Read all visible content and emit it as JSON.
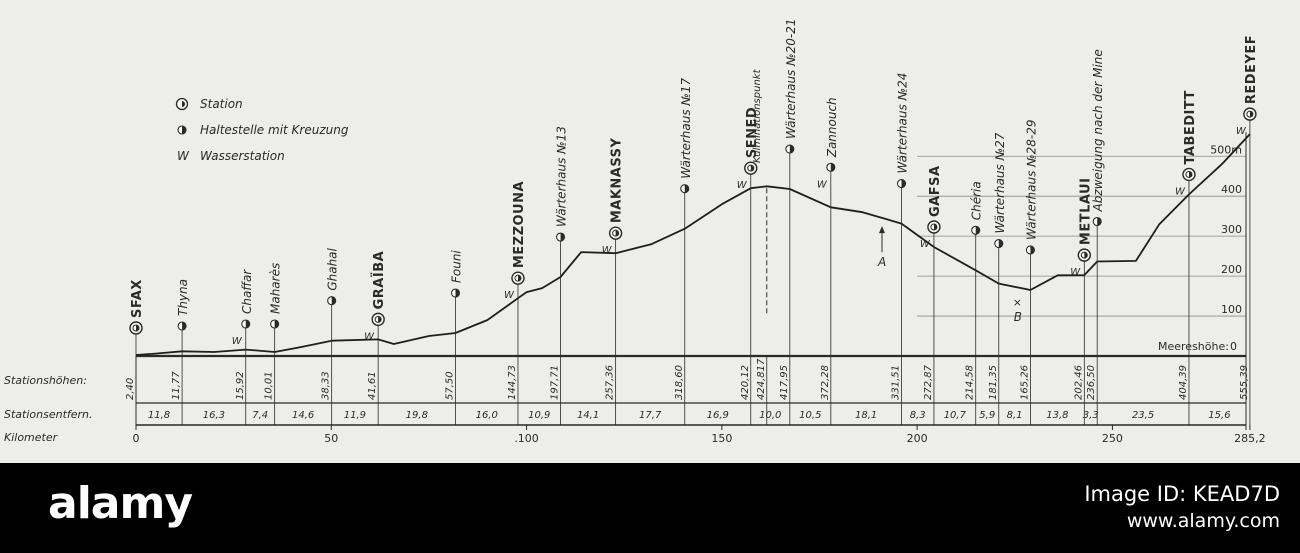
{
  "legend": {
    "station": "Station",
    "halt": "Haltestelle mit Kreuzung",
    "water_symbol": "W",
    "water": "Wasserstation"
  },
  "rows": {
    "heights_label": "Stationshöhen:",
    "distances_label": "Stationsentfern.",
    "km_label": "Kilometer",
    "sea_level_label": "Meereshöhe:",
    "sea_level_value": "0"
  },
  "markers": {
    "A": "A",
    "B": "B"
  },
  "elevation_axis": [
    {
      "value": 100,
      "label": "100"
    },
    {
      "value": 200,
      "label": "200"
    },
    {
      "value": 300,
      "label": "300"
    },
    {
      "value": 400,
      "label": "400"
    },
    {
      "value": 500,
      "label": "500m"
    }
  ],
  "km_ticks": [
    {
      "km": 0,
      "label": "0"
    },
    {
      "km": 50,
      "label": "50"
    },
    {
      "km": 100,
      "label": ".100"
    },
    {
      "km": 150,
      "label": "150"
    },
    {
      "km": 200,
      "label": "200"
    },
    {
      "km": 250,
      "label": "250"
    },
    {
      "km": 285.2,
      "label": "285,2"
    }
  ],
  "stations": [
    {
      "name": "SFAX",
      "km": 0,
      "elev": 2.4,
      "height_label": "2,40",
      "type": "station",
      "water": false
    },
    {
      "name": "Thyna",
      "km": 11.8,
      "elev": 11.77,
      "height_label": "11,77",
      "type": "halt",
      "water": false
    },
    {
      "name": "Chaffar",
      "km": 28.1,
      "elev": 15.92,
      "height_label": "15,92",
      "type": "halt",
      "water": true
    },
    {
      "name": "Maharès",
      "km": 35.5,
      "elev": 10.01,
      "height_label": "10,01",
      "type": "halt",
      "water": false
    },
    {
      "name": "Ghahal",
      "km": 50.1,
      "elev": 38.33,
      "height_label": "38,33",
      "type": "halt",
      "water": false
    },
    {
      "name": "GRAÏBA",
      "km": 62.0,
      "elev": 41.61,
      "height_label": "41,61",
      "type": "station",
      "water": true
    },
    {
      "name": "Founi",
      "km": 81.8,
      "elev": 57.5,
      "height_label": "57,50",
      "type": "halt",
      "water": false
    },
    {
      "name": "MEZZOUNA",
      "km": 97.8,
      "elev": 144.73,
      "height_label": "144,73",
      "type": "station",
      "water": true
    },
    {
      "name": "Wärterhaus №13",
      "km": 108.7,
      "elev": 197.71,
      "height_label": "197,71",
      "type": "halt",
      "water": false
    },
    {
      "name": "MAKNASSY",
      "km": 122.8,
      "elev": 257.36,
      "height_label": "257,36",
      "type": "station",
      "water": true
    },
    {
      "name": "Wärterhaus №17",
      "km": 140.5,
      "elev": 318.6,
      "height_label": "318,60",
      "type": "halt",
      "water": false
    },
    {
      "name": "SENED",
      "km": 157.4,
      "elev": 420.12,
      "height_label": "420,12",
      "type": "station",
      "water": true
    },
    {
      "name": "Kulminationspunkt",
      "km": 161.5,
      "elev": 424.817,
      "height_label": "424,817",
      "type": "culmination",
      "water": false
    },
    {
      "name": "Wärterhaus №20-21",
      "km": 167.4,
      "elev": 417.95,
      "height_label": "417,95",
      "type": "halt",
      "water": false
    },
    {
      "name": "Zannouch",
      "km": 177.9,
      "elev": 372.28,
      "height_label": "372,28",
      "type": "halt",
      "water": true
    },
    {
      "name": "Wärterhaus №24",
      "km": 196.0,
      "elev": 331.51,
      "height_label": "331,51",
      "type": "halt",
      "water": false
    },
    {
      "name": "GAFSA",
      "km": 204.3,
      "elev": 272.87,
      "height_label": "272,87",
      "type": "station",
      "water": true
    },
    {
      "name": "Chéria",
      "km": 215.0,
      "elev": 214.58,
      "height_label": "214,58",
      "type": "halt",
      "water": false
    },
    {
      "name": "Wärterhaus №27",
      "km": 220.9,
      "elev": 181.35,
      "height_label": "181,35",
      "type": "halt",
      "water": false
    },
    {
      "name": "Wärterhaus №28-29",
      "km": 229.0,
      "elev": 165.26,
      "height_label": "165,26",
      "type": "halt",
      "water": false
    },
    {
      "name": "METLAUI",
      "km": 242.8,
      "elev": 202.46,
      "height_label": "202,46",
      "type": "station",
      "water": true
    },
    {
      "name": "Abzweigung nach der Mine",
      "km": 246.1,
      "elev": 236.5,
      "height_label": "236,50",
      "type": "halt",
      "water": false
    },
    {
      "name": "TABEDITT",
      "km": 269.6,
      "elev": 404.39,
      "height_label": "404,39",
      "type": "station",
      "water": true
    },
    {
      "name": "REDEYEF",
      "km": 285.2,
      "elev": 555.39,
      "height_label": "555,39",
      "type": "station",
      "water": true
    }
  ],
  "distances": [
    {
      "km_mid": 5.9,
      "label": "11,8"
    },
    {
      "km_mid": 19.95,
      "label": "16,3"
    },
    {
      "km_mid": 31.8,
      "label": "7,4"
    },
    {
      "km_mid": 42.8,
      "label": "14,6"
    },
    {
      "km_mid": 56.05,
      "label": "11,9"
    },
    {
      "km_mid": 71.9,
      "label": "19,8"
    },
    {
      "km_mid": 89.8,
      "label": "16,0"
    },
    {
      "km_mid": 103.25,
      "label": "10,9"
    },
    {
      "km_mid": 115.75,
      "label": "14,1"
    },
    {
      "km_mid": 131.65,
      "label": "17,7"
    },
    {
      "km_mid": 148.95,
      "label": "16,9"
    },
    {
      "km_mid": 162.4,
      "label": "10,0"
    },
    {
      "km_mid": 172.65,
      "label": "10,5"
    },
    {
      "km_mid": 186.95,
      "label": "18,1"
    },
    {
      "km_mid": 200.15,
      "label": "8,3"
    },
    {
      "km_mid": 209.65,
      "label": "10,7"
    },
    {
      "km_mid": 217.95,
      "label": "5,9"
    },
    {
      "km_mid": 224.95,
      "label": "8,1"
    },
    {
      "km_mid": 235.9,
      "label": "13,8"
    },
    {
      "km_mid": 244.45,
      "label": "3,3"
    },
    {
      "km_mid": 257.85,
      "label": "23,5"
    },
    {
      "km_mid": 277.4,
      "label": "15,6"
    }
  ],
  "profile_points": [
    [
      0,
      2.4
    ],
    [
      5,
      6
    ],
    [
      11.8,
      11.77
    ],
    [
      20,
      10
    ],
    [
      28.1,
      15.92
    ],
    [
      35.5,
      10.01
    ],
    [
      42,
      22
    ],
    [
      50.1,
      38.33
    ],
    [
      62.0,
      41.61
    ],
    [
      66,
      30
    ],
    [
      75,
      50
    ],
    [
      81.8,
      57.5
    ],
    [
      90,
      90
    ],
    [
      97.8,
      144.73
    ],
    [
      100,
      160
    ],
    [
      104,
      170
    ],
    [
      108.7,
      197.71
    ],
    [
      114,
      260
    ],
    [
      122.8,
      257.36
    ],
    [
      132,
      280
    ],
    [
      140.5,
      318.6
    ],
    [
      150,
      380
    ],
    [
      157.4,
      420.12
    ],
    [
      161.5,
      424.817
    ],
    [
      167.4,
      417.95
    ],
    [
      177.9,
      372.28
    ],
    [
      186,
      360
    ],
    [
      196.0,
      331.51
    ],
    [
      204.3,
      272.87
    ],
    [
      215.0,
      214.58
    ],
    [
      220.9,
      181.35
    ],
    [
      229.0,
      165.26
    ],
    [
      236,
      202
    ],
    [
      242.8,
      202.46
    ],
    [
      246.1,
      236.5
    ],
    [
      256,
      238
    ],
    [
      262,
      330
    ],
    [
      269.6,
      404.39
    ],
    [
      278,
      480
    ],
    [
      285.2,
      555.39
    ]
  ],
  "watermark": {
    "logo": "alamy",
    "image_id": "Image ID: KEAD7D",
    "url": "www.alamy.com"
  }
}
